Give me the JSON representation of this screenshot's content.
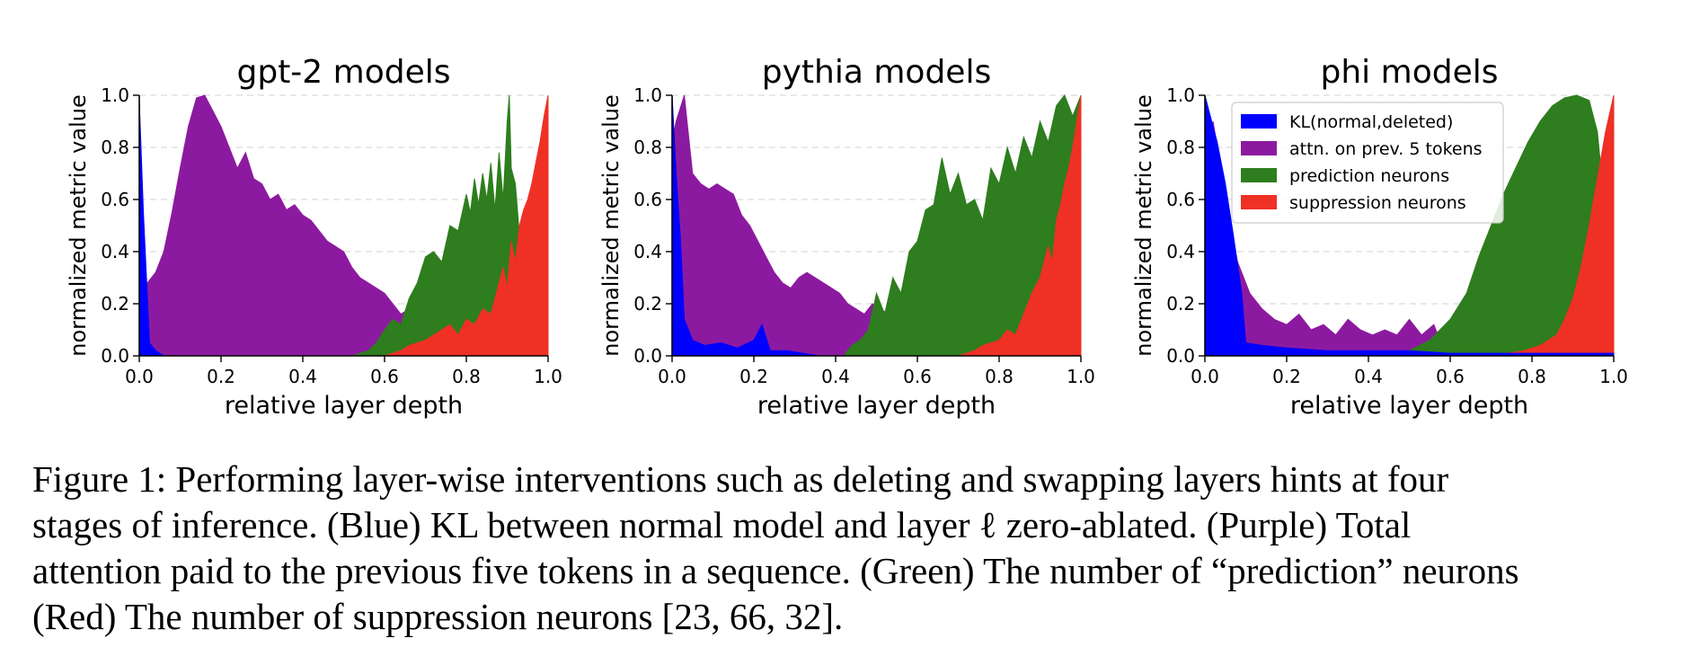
{
  "caption": {
    "line1": "Figure 1: Performing layer-wise interventions such as deleting and swapping layers hints at four",
    "line2": "stages of inference.  (Blue) KL between normal model and layer ℓ zero-ablated.  (Purple) Total",
    "line3": "attention paid to the previous five tokens in a sequence. (Green) The number of “prediction” neurons",
    "line4": "(Red) The number of suppression neurons [23, 66, 32]."
  },
  "chart_data": [
    {
      "type": "area",
      "title": "gpt-2 models",
      "xlabel": "relative layer depth",
      "ylabel": "normalized metric value",
      "xlim": [
        0,
        1
      ],
      "ylim": [
        0,
        1
      ],
      "xticks": [
        "0.0",
        "0.2",
        "0.4",
        "0.6",
        "0.8",
        "1.0"
      ],
      "yticks": [
        "0.0",
        "0.2",
        "0.4",
        "0.6",
        "0.8",
        "1.0"
      ],
      "grid": "horizontal dashed",
      "series": [
        {
          "color": "#8c1aa0",
          "x": [
            0,
            0.02,
            0.04,
            0.06,
            0.08,
            0.1,
            0.12,
            0.14,
            0.16,
            0.18,
            0.2,
            0.22,
            0.24,
            0.26,
            0.28,
            0.3,
            0.32,
            0.34,
            0.36,
            0.38,
            0.4,
            0.42,
            0.44,
            0.46,
            0.48,
            0.5,
            0.52,
            0.54,
            0.56,
            0.58,
            0.6,
            0.62,
            0.64,
            0.66,
            0.68,
            0.7
          ],
          "y": [
            0.2,
            0.28,
            0.32,
            0.4,
            0.55,
            0.72,
            0.88,
            0.99,
            1.0,
            0.94,
            0.88,
            0.8,
            0.72,
            0.78,
            0.68,
            0.66,
            0.6,
            0.62,
            0.56,
            0.58,
            0.54,
            0.52,
            0.48,
            0.44,
            0.42,
            0.4,
            0.34,
            0.3,
            0.28,
            0.26,
            0.24,
            0.2,
            0.16,
            0.18,
            0.14,
            0.0
          ]
        },
        {
          "color": "#2e7d1e",
          "x": [
            0.52,
            0.56,
            0.58,
            0.6,
            0.62,
            0.64,
            0.66,
            0.68,
            0.7,
            0.72,
            0.74,
            0.76,
            0.78,
            0.8,
            0.81,
            0.82,
            0.83,
            0.84,
            0.85,
            0.86,
            0.87,
            0.88,
            0.89,
            0.9,
            0.905,
            0.91,
            0.92,
            0.93,
            0.94,
            0.96,
            0.98,
            1.0
          ],
          "y": [
            0.0,
            0.02,
            0.05,
            0.1,
            0.14,
            0.12,
            0.22,
            0.28,
            0.38,
            0.4,
            0.36,
            0.5,
            0.48,
            0.62,
            0.55,
            0.68,
            0.58,
            0.7,
            0.6,
            0.74,
            0.56,
            0.78,
            0.6,
            0.9,
            1.0,
            0.72,
            0.66,
            0.46,
            0.38,
            0.3,
            0.22,
            0.1
          ]
        },
        {
          "color": "#ee3124",
          "x": [
            0.6,
            0.64,
            0.66,
            0.7,
            0.72,
            0.74,
            0.76,
            0.78,
            0.8,
            0.82,
            0.84,
            0.86,
            0.88,
            0.89,
            0.9,
            0.91,
            0.92,
            0.93,
            0.94,
            0.95,
            0.96,
            0.97,
            0.98,
            0.99,
            1.0
          ],
          "y": [
            0.0,
            0.02,
            0.04,
            0.06,
            0.08,
            0.1,
            0.12,
            0.08,
            0.14,
            0.12,
            0.18,
            0.16,
            0.28,
            0.34,
            0.26,
            0.44,
            0.36,
            0.5,
            0.56,
            0.6,
            0.66,
            0.74,
            0.82,
            0.92,
            1.0
          ]
        },
        {
          "color": "#0000ff",
          "x": [
            0,
            0.01,
            0.025,
            0.04,
            0.06
          ],
          "y": [
            0.98,
            0.55,
            0.05,
            0.02,
            0.0
          ]
        }
      ]
    },
    {
      "type": "area",
      "title": "pythia models",
      "xlabel": "relative layer depth",
      "ylabel": "normalized metric value",
      "xlim": [
        0,
        1
      ],
      "ylim": [
        0,
        1
      ],
      "xticks": [
        "0.0",
        "0.2",
        "0.4",
        "0.6",
        "0.8",
        "1.0"
      ],
      "yticks": [
        "0.0",
        "0.2",
        "0.4",
        "0.6",
        "0.8",
        "1.0"
      ],
      "grid": "horizontal dashed",
      "series": [
        {
          "color": "#8c1aa0",
          "x": [
            0.0,
            0.01,
            0.03,
            0.05,
            0.07,
            0.09,
            0.11,
            0.13,
            0.15,
            0.17,
            0.19,
            0.21,
            0.23,
            0.25,
            0.27,
            0.29,
            0.31,
            0.33,
            0.35,
            0.37,
            0.39,
            0.41,
            0.43,
            0.45,
            0.47,
            0.49,
            0.51,
            0.53,
            0.55,
            0.57,
            0.6
          ],
          "y": [
            0.82,
            0.9,
            1.0,
            0.7,
            0.66,
            0.64,
            0.66,
            0.64,
            0.62,
            0.54,
            0.5,
            0.44,
            0.38,
            0.32,
            0.28,
            0.26,
            0.3,
            0.32,
            0.3,
            0.28,
            0.26,
            0.24,
            0.2,
            0.18,
            0.16,
            0.2,
            0.18,
            0.16,
            0.14,
            0.12,
            0.0
          ]
        },
        {
          "color": "#2e7d1e",
          "x": [
            0.42,
            0.44,
            0.46,
            0.48,
            0.5,
            0.52,
            0.54,
            0.56,
            0.58,
            0.6,
            0.62,
            0.64,
            0.66,
            0.68,
            0.7,
            0.72,
            0.74,
            0.76,
            0.78,
            0.8,
            0.82,
            0.84,
            0.86,
            0.88,
            0.9,
            0.92,
            0.94,
            0.96,
            0.98,
            1.0
          ],
          "y": [
            0.0,
            0.04,
            0.06,
            0.1,
            0.24,
            0.16,
            0.3,
            0.24,
            0.4,
            0.44,
            0.56,
            0.58,
            0.76,
            0.62,
            0.7,
            0.58,
            0.6,
            0.52,
            0.72,
            0.66,
            0.8,
            0.7,
            0.84,
            0.76,
            0.9,
            0.82,
            0.96,
            1.0,
            0.92,
            1.0
          ]
        },
        {
          "color": "#ee3124",
          "x": [
            0.7,
            0.74,
            0.76,
            0.8,
            0.82,
            0.84,
            0.86,
            0.88,
            0.9,
            0.92,
            0.93,
            0.94,
            0.95,
            0.96,
            0.97,
            0.98,
            0.99,
            1.0
          ],
          "y": [
            0.0,
            0.02,
            0.04,
            0.06,
            0.1,
            0.08,
            0.16,
            0.24,
            0.3,
            0.42,
            0.36,
            0.52,
            0.58,
            0.66,
            0.72,
            0.8,
            0.9,
            1.0
          ]
        },
        {
          "color": "#0000ff",
          "x": [
            0,
            0.01,
            0.02,
            0.03,
            0.05,
            0.08,
            0.12,
            0.16,
            0.2,
            0.22,
            0.24,
            0.28,
            0.32,
            0.36
          ],
          "y": [
            1.0,
            0.7,
            0.46,
            0.14,
            0.06,
            0.04,
            0.05,
            0.03,
            0.06,
            0.12,
            0.02,
            0.02,
            0.01,
            0.0
          ]
        }
      ]
    },
    {
      "type": "area",
      "title": "phi models",
      "xlabel": "relative layer depth",
      "ylabel": "normalized metric value",
      "xlim": [
        0,
        1
      ],
      "ylim": [
        0,
        1
      ],
      "xticks": [
        "0.0",
        "0.2",
        "0.4",
        "0.6",
        "0.8",
        "1.0"
      ],
      "yticks": [
        "0.0",
        "0.2",
        "0.4",
        "0.6",
        "0.8",
        "1.0"
      ],
      "grid": "horizontal dashed",
      "legend": {
        "placement": "upper-left",
        "entries": [
          {
            "label": "KL(normal,deleted)",
            "color": "#0000ff"
          },
          {
            "label": "attn. on prev. 5 tokens",
            "color": "#8c1aa0"
          },
          {
            "label": "prediction neurons",
            "color": "#2e7d1e"
          },
          {
            "label": "suppression neurons",
            "color": "#ee3124"
          }
        ]
      },
      "series": [
        {
          "color": "#8c1aa0",
          "x": [
            0.02,
            0.05,
            0.08,
            0.11,
            0.14,
            0.17,
            0.2,
            0.23,
            0.26,
            0.29,
            0.32,
            0.35,
            0.38,
            0.41,
            0.44,
            0.47,
            0.5,
            0.53,
            0.56,
            0.58,
            0.6
          ],
          "y": [
            0.9,
            0.6,
            0.36,
            0.24,
            0.18,
            0.14,
            0.12,
            0.16,
            0.1,
            0.12,
            0.08,
            0.14,
            0.1,
            0.08,
            0.1,
            0.08,
            0.14,
            0.08,
            0.12,
            0.04,
            0.0
          ]
        },
        {
          "color": "#2e7d1e",
          "x": [
            0.4,
            0.5,
            0.55,
            0.6,
            0.64,
            0.67,
            0.7,
            0.73,
            0.76,
            0.79,
            0.82,
            0.85,
            0.88,
            0.91,
            0.94,
            0.96,
            0.97,
            0.98,
            1.0
          ],
          "y": [
            0.0,
            0.02,
            0.06,
            0.14,
            0.24,
            0.38,
            0.5,
            0.62,
            0.72,
            0.82,
            0.9,
            0.96,
            0.99,
            1.0,
            0.98,
            0.86,
            0.7,
            0.5,
            0.0
          ]
        },
        {
          "color": "#ee3124",
          "x": [
            0.7,
            0.78,
            0.82,
            0.86,
            0.88,
            0.9,
            0.92,
            0.94,
            0.96,
            0.98,
            1.0
          ],
          "y": [
            0.0,
            0.02,
            0.04,
            0.08,
            0.14,
            0.22,
            0.34,
            0.5,
            0.68,
            0.86,
            1.0
          ]
        },
        {
          "color": "#0000ff",
          "x": [
            0,
            0.01,
            0.03,
            0.05,
            0.07,
            0.09,
            0.1,
            0.14,
            0.2,
            0.3,
            0.4,
            0.5,
            0.6,
            0.7,
            0.8,
            0.9,
            1.0
          ],
          "y": [
            1.0,
            0.94,
            0.82,
            0.66,
            0.46,
            0.24,
            0.05,
            0.04,
            0.03,
            0.02,
            0.02,
            0.02,
            0.01,
            0.01,
            0.01,
            0.01,
            0.01
          ]
        }
      ]
    }
  ]
}
